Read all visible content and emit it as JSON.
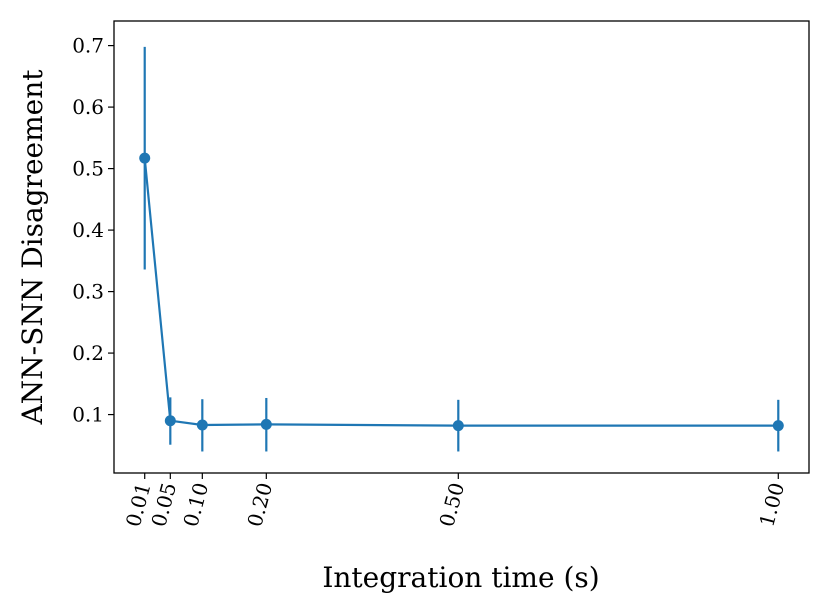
{
  "chart_data": {
    "type": "line",
    "xlabel": "Integration time (s)",
    "ylabel": "ANN-SNN Disagreement",
    "xlim": [
      -0.038,
      1.048
    ],
    "ylim": [
      0.005,
      0.74
    ],
    "x_ticks": [
      0.01,
      0.05,
      0.1,
      0.2,
      0.5,
      1.0
    ],
    "x_tick_labels": [
      "0.01",
      "0.05",
      "0.10",
      "0.20",
      "0.50",
      "1.00"
    ],
    "y_ticks": [
      0.1,
      0.2,
      0.3,
      0.4,
      0.5,
      0.6,
      0.7
    ],
    "y_tick_labels": [
      "0.1",
      "0.2",
      "0.3",
      "0.4",
      "0.5",
      "0.6",
      "0.7"
    ],
    "grid": false,
    "series": [
      {
        "color": "#1f77b4",
        "x": [
          0.01,
          0.05,
          0.1,
          0.2,
          0.5,
          1.0
        ],
        "y": [
          0.517,
          0.09,
          0.083,
          0.084,
          0.082,
          0.082
        ],
        "err_low": [
          0.336,
          0.051,
          0.04,
          0.04,
          0.04,
          0.04
        ],
        "err_high": [
          0.698,
          0.128,
          0.125,
          0.127,
          0.124,
          0.124
        ]
      }
    ]
  }
}
